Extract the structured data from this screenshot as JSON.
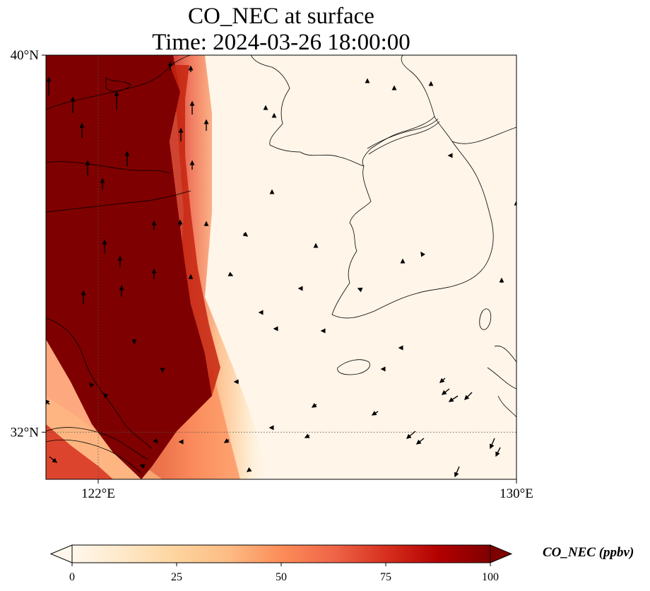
{
  "title": {
    "line1": "CO_NEC at surface",
    "line2": "Time: 2024-03-26 18:00:00"
  },
  "map": {
    "lon_range": [
      121,
      130
    ],
    "lat_range": [
      31,
      40
    ],
    "lat_ticks": [
      {
        "value": 40,
        "label": "40°N"
      },
      {
        "value": 32,
        "label": "32°N"
      }
    ],
    "lon_ticks": [
      {
        "value": 122,
        "label": "122°E"
      },
      {
        "value": 130,
        "label": "130°E"
      }
    ],
    "gridlines": "dotted at 122°E and 32°N",
    "field": "CO concentration shading, high (≥100 ppbv) over eastern China, low (near 0) over Yellow Sea and Korean Peninsula",
    "wind_vectors": "black arrows"
  },
  "colorbar": {
    "label": "CO_NEC (ppbv)",
    "min": 0,
    "max": 100,
    "extend": "both",
    "ticks": [
      {
        "value": 0,
        "label": "0"
      },
      {
        "value": 25,
        "label": "25"
      },
      {
        "value": 50,
        "label": "50"
      },
      {
        "value": 75,
        "label": "75"
      },
      {
        "value": 100,
        "label": "100"
      }
    ],
    "colormap": [
      "#fff7ec",
      "#fee8c8",
      "#fdd49e",
      "#fdbb84",
      "#fc8d59",
      "#ef6548",
      "#d7301f",
      "#b30000",
      "#7f0000"
    ]
  }
}
